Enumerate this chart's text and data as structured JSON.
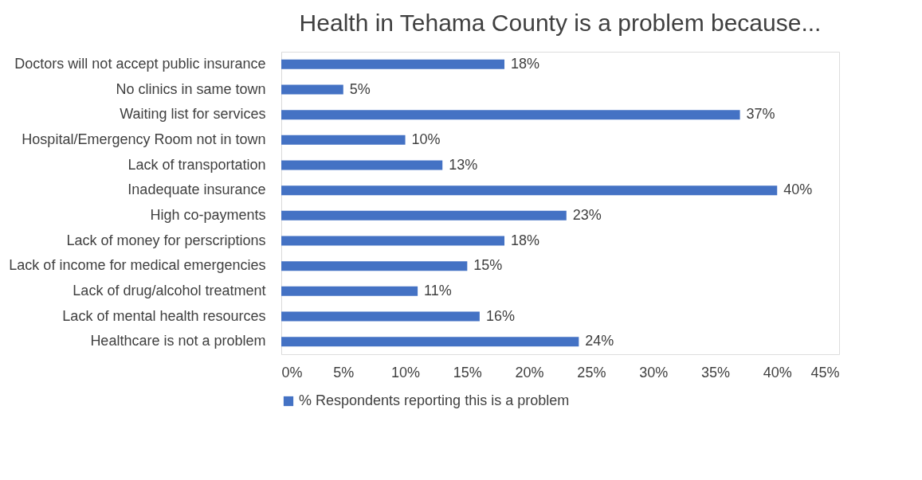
{
  "chart_data": {
    "type": "bar",
    "orientation": "horizontal",
    "title": "Health in Tehama County is a problem because...",
    "categories": [
      "Doctors will not accept public insurance",
      "No clinics in same town",
      "Waiting list for services",
      "Hospital/Emergency Room not in town",
      "Lack of transportation",
      "Inadequate insurance",
      "High co-payments",
      "Lack of money for perscriptions",
      "Lack of income for medical emergencies",
      "Lack of drug/alcohol treatment",
      "Lack of mental health resources",
      "Healthcare is not a problem"
    ],
    "series": [
      {
        "name": "% Respondents reporting this is a problem",
        "color": "#4472c4",
        "values": [
          18,
          5,
          37,
          10,
          13,
          40,
          23,
          18,
          15,
          11,
          16,
          24
        ],
        "value_labels": [
          "18%",
          "5%",
          "37%",
          "10%",
          "13%",
          "40%",
          "23%",
          "18%",
          "15%",
          "11%",
          "16%",
          "24%"
        ]
      }
    ],
    "xlim": [
      0,
      45
    ],
    "xticks": [
      {
        "value": 0,
        "label": "0%"
      },
      {
        "value": 5,
        "label": "5%"
      },
      {
        "value": 10,
        "label": "10%"
      },
      {
        "value": 15,
        "label": "15%"
      },
      {
        "value": 20,
        "label": "20%"
      },
      {
        "value": 25,
        "label": "25%"
      },
      {
        "value": 30,
        "label": "30%"
      },
      {
        "value": 35,
        "label": "35%"
      },
      {
        "value": 40,
        "label": "40%"
      },
      {
        "value": 45,
        "label": "45%"
      }
    ],
    "grid": false,
    "legend": "bottom"
  }
}
